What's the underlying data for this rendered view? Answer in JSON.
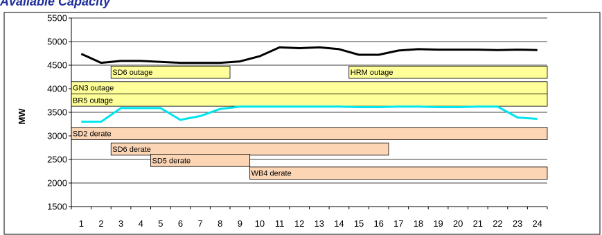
{
  "chart_data": {
    "type": "line",
    "title": "Available Capacity",
    "xlabel": "",
    "ylabel": "MW",
    "ylim": [
      1500,
      5500
    ],
    "yticks": [
      1500,
      2000,
      2500,
      3000,
      3500,
      4000,
      4500,
      5000,
      5500
    ],
    "x": [
      1,
      2,
      3,
      4,
      5,
      6,
      7,
      8,
      9,
      10,
      11,
      12,
      13,
      14,
      15,
      16,
      17,
      18,
      19,
      20,
      21,
      22,
      23,
      24
    ],
    "grid": true,
    "legend": "none",
    "series": [
      {
        "color": "#000000",
        "values": [
          4740,
          4550,
          4590,
          4590,
          4570,
          4550,
          4550,
          4550,
          4580,
          4690,
          4880,
          4860,
          4880,
          4840,
          4720,
          4720,
          4810,
          4840,
          4830,
          4830,
          4830,
          4820,
          4830,
          4820
        ]
      },
      {
        "color": "#00e5ee",
        "values": [
          3300,
          3300,
          3590,
          3590,
          3590,
          3340,
          3420,
          3570,
          3620,
          3620,
          3620,
          3620,
          3620,
          3620,
          3610,
          3610,
          3620,
          3620,
          3610,
          3610,
          3620,
          3620,
          3390,
          3360
        ]
      }
    ],
    "outages": [
      {
        "label": "SD6 outage",
        "start": 2.5,
        "end": 8.5,
        "top": 4480,
        "bottom": 4220,
        "color": "#ffff99"
      },
      {
        "label": "HRM outage",
        "start": 14.5,
        "end": 24.5,
        "top": 4480,
        "bottom": 4220,
        "color": "#ffff99"
      },
      {
        "label": "GN3 outage",
        "start": 0.5,
        "end": 24.5,
        "top": 4150,
        "bottom": 3890,
        "color": "#ffff99"
      },
      {
        "label": "BR5 outage",
        "start": 0.5,
        "end": 24.5,
        "top": 3890,
        "bottom": 3630,
        "color": "#ffff99"
      },
      {
        "label": "SD2 derate",
        "start": 0.5,
        "end": 24.5,
        "top": 3180,
        "bottom": 2920,
        "color": "#fcd5b5"
      },
      {
        "label": "SD6 derate",
        "start": 2.5,
        "end": 16.5,
        "top": 2850,
        "bottom": 2590,
        "color": "#fcd5b5"
      },
      {
        "label": "SD5 derate",
        "start": 4.5,
        "end": 9.5,
        "top": 2610,
        "bottom": 2350,
        "color": "#fcd5b5"
      },
      {
        "label": "WB4 derate",
        "start": 9.5,
        "end": 24.5,
        "top": 2340,
        "bottom": 2080,
        "color": "#fcd5b5"
      }
    ]
  }
}
